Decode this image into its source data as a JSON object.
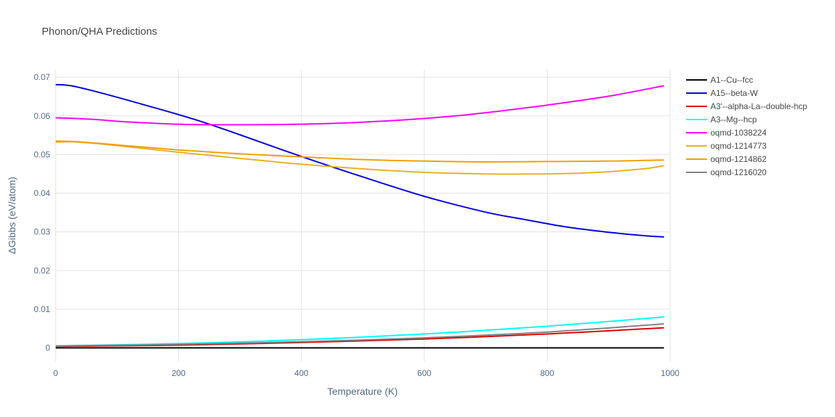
{
  "chart_data": {
    "type": "line",
    "title": "Phonon/QHA Predictions",
    "xlabel": "Temperature (K)",
    "ylabel": "ΔGibbs (eV/atom)",
    "xlim": [
      0,
      1000
    ],
    "ylim": [
      -0.0035,
      0.072
    ],
    "xticks": [
      0,
      200,
      400,
      600,
      800,
      1000
    ],
    "xtick_labels": [
      "0",
      "200",
      "400",
      "600",
      "800",
      "1000"
    ],
    "yticks": [
      0,
      0.01,
      0.02,
      0.03,
      0.04,
      0.05,
      0.06,
      0.07
    ],
    "ytick_labels": [
      "0",
      "0.01",
      "0.02",
      "0.03",
      "0.04",
      "0.05",
      "0.06",
      "0.07"
    ],
    "grid": true,
    "legend_position": "right",
    "series": [
      {
        "name": "A1--Cu--fcc",
        "color": "#000000",
        "x": [
          0,
          990
        ],
        "y": [
          0,
          0
        ]
      },
      {
        "name": "A15--beta-W",
        "color": "#0000dd",
        "x": [
          0,
          25,
          70,
          150,
          230,
          300,
          400,
          500,
          600,
          700,
          760,
          830,
          900,
          960,
          990
        ],
        "y": [
          0.0681,
          0.0678,
          0.0661,
          0.0626,
          0.0589,
          0.0551,
          0.0495,
          0.0442,
          0.0392,
          0.0351,
          0.0333,
          0.0313,
          0.0299,
          0.029,
          0.0287
        ]
      },
      {
        "name": "A3'--alpha-La--double-hcp",
        "color": "#dd0000",
        "x": [
          0,
          200,
          400,
          600,
          800,
          990
        ],
        "y": [
          0.0004,
          0.0007,
          0.0014,
          0.0023,
          0.0036,
          0.0052
        ]
      },
      {
        "name": "A3--Mg--hcp",
        "color": "#00ffff",
        "x": [
          0,
          200,
          400,
          600,
          800,
          990
        ],
        "y": [
          0.0005,
          0.0011,
          0.0021,
          0.0036,
          0.0056,
          0.008
        ]
      },
      {
        "name": "oqmd-1038224",
        "color": "#ff00ff",
        "x": [
          0,
          25,
          70,
          110,
          160,
          210,
          280,
          380,
          460,
          560,
          650,
          720,
          800,
          900,
          990
        ],
        "y": [
          0.0595,
          0.0594,
          0.059,
          0.0585,
          0.0581,
          0.0578,
          0.0577,
          0.0578,
          0.0581,
          0.0589,
          0.06,
          0.0612,
          0.0628,
          0.0651,
          0.0678
        ]
      },
      {
        "name": "oqmd-1214773",
        "color": "#e8b020",
        "x": [
          0,
          25,
          70,
          130,
          200,
          300,
          400,
          500,
          600,
          700,
          800,
          870,
          950,
          990
        ],
        "y": [
          0.0532,
          0.0533,
          0.0528,
          0.0518,
          0.0506,
          0.049,
          0.0475,
          0.0463,
          0.0454,
          0.045,
          0.045,
          0.0453,
          0.0462,
          0.0471
        ]
      },
      {
        "name": "oqmd-1214862",
        "color": "#f0a000",
        "x": [
          0,
          25,
          70,
          130,
          200,
          300,
          400,
          500,
          600,
          700,
          800,
          900,
          990
        ],
        "y": [
          0.0535,
          0.0534,
          0.0529,
          0.0521,
          0.0512,
          0.0502,
          0.0494,
          0.0487,
          0.0483,
          0.0481,
          0.0482,
          0.0483,
          0.0486
        ]
      },
      {
        "name": "oqmd-1216020",
        "color": "#808080",
        "x": [
          0,
          200,
          400,
          600,
          800,
          990
        ],
        "y": [
          0.0005,
          0.0009,
          0.0016,
          0.0026,
          0.0041,
          0.0062
        ]
      }
    ]
  }
}
